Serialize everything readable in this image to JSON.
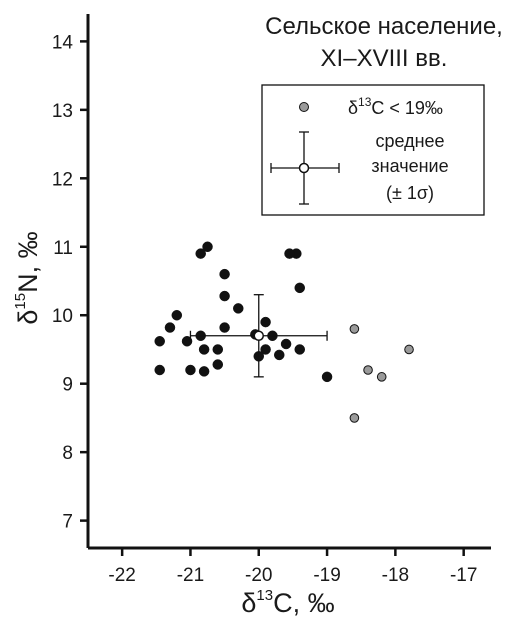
{
  "chart_data": {
    "type": "scatter",
    "title_lines": [
      "Сельское население,",
      "XI–XVIII вв."
    ],
    "xlabel": {
      "prefix": "δ",
      "sup": "13",
      "main": "C, ‰"
    },
    "ylabel": {
      "prefix": "δ",
      "sup": "15",
      "main": "N, ‰"
    },
    "xlim": [
      -22.5,
      -16.6
    ],
    "ylim": [
      6.6,
      14.4
    ],
    "x_ticks": [
      -22,
      -21,
      -20,
      -19,
      -18,
      -17
    ],
    "x_tick_labels": [
      "-22",
      "-21",
      "-20",
      "-19",
      "-18",
      "-17"
    ],
    "y_ticks": [
      7,
      8,
      9,
      10,
      11,
      12,
      13,
      14
    ],
    "y_tick_labels": [
      "7",
      "8",
      "9",
      "10",
      "11",
      "12",
      "13",
      "14"
    ],
    "legend": {
      "placement": "top-right",
      "grey_label": {
        "prefix": "δ",
        "sup": "13",
        "main": "C < 19‰"
      },
      "mean_label_lines": [
        "среднее",
        "значение",
        "(± 1σ)"
      ]
    },
    "colors": {
      "black_points": "#111111",
      "grey_points": "#9a9a9a",
      "axis": "#111111"
    },
    "series": [
      {
        "marker": "black-circle",
        "points": [
          [
            -20.75,
            11.0
          ],
          [
            -20.85,
            10.9
          ],
          [
            -19.45,
            10.9
          ],
          [
            -19.55,
            10.9
          ],
          [
            -20.5,
            10.6
          ],
          [
            -19.4,
            10.4
          ],
          [
            -20.5,
            10.28
          ],
          [
            -20.3,
            10.1
          ],
          [
            -21.2,
            10.0
          ],
          [
            -21.3,
            9.82
          ],
          [
            -20.5,
            9.82
          ],
          [
            -21.45,
            9.62
          ],
          [
            -21.05,
            9.62
          ],
          [
            -20.85,
            9.7
          ],
          [
            -20.05,
            9.72
          ],
          [
            -19.9,
            9.9
          ],
          [
            -19.8,
            9.7
          ],
          [
            -19.6,
            9.58
          ],
          [
            -20.8,
            9.5
          ],
          [
            -20.6,
            9.5
          ],
          [
            -19.9,
            9.5
          ],
          [
            -19.7,
            9.42
          ],
          [
            -20.0,
            9.4
          ],
          [
            -19.4,
            9.5
          ],
          [
            -20.6,
            9.28
          ],
          [
            -21.45,
            9.2
          ],
          [
            -21.0,
            9.2
          ],
          [
            -20.8,
            9.18
          ],
          [
            -19.0,
            9.1
          ]
        ]
      },
      {
        "marker": "grey-circle",
        "points": [
          [
            -18.6,
            9.8
          ],
          [
            -17.8,
            9.5
          ],
          [
            -18.4,
            9.2
          ],
          [
            -18.2,
            9.1
          ],
          [
            -18.6,
            8.5
          ]
        ]
      }
    ],
    "mean": {
      "x": -20.0,
      "y": 9.7,
      "x_sd": 1.0,
      "y_sd": 0.6
    }
  }
}
